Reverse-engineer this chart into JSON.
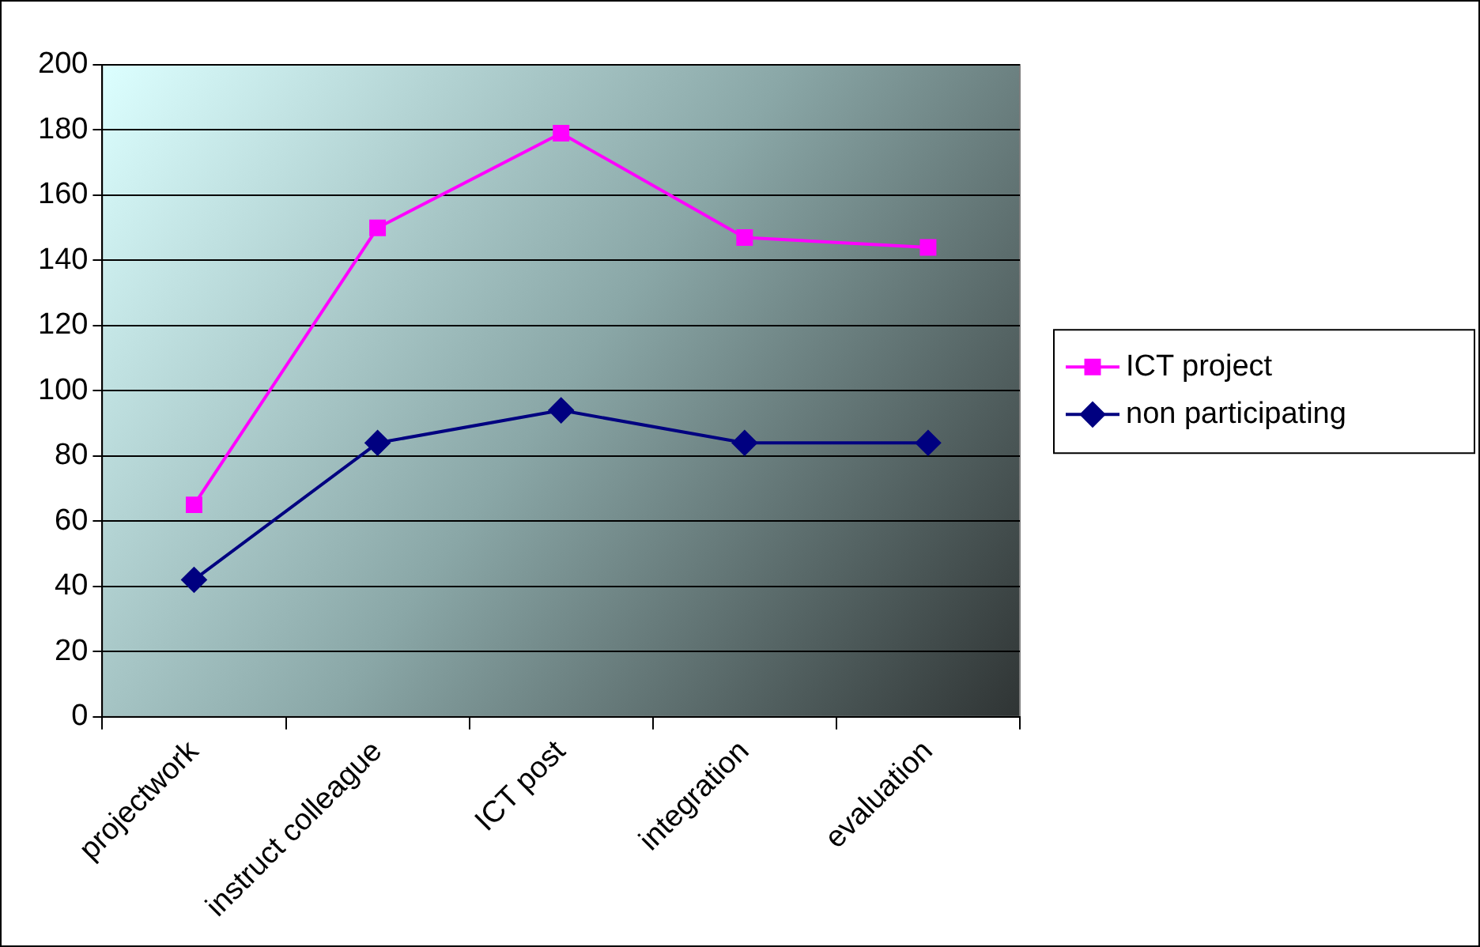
{
  "chart_data": {
    "type": "line",
    "categories": [
      "projectwork",
      "instruct colleague",
      "ICT post",
      "integration",
      "evaluation"
    ],
    "series": [
      {
        "name": "ICT project",
        "color": "#ff00ff",
        "marker": "square",
        "values": [
          65,
          150,
          179,
          147,
          144
        ]
      },
      {
        "name": "non participating",
        "color": "#000080",
        "marker": "diamond",
        "values": [
          42,
          84,
          94,
          84,
          84
        ]
      }
    ],
    "ylim": [
      0,
      200
    ],
    "yticks": [
      0,
      20,
      40,
      60,
      80,
      100,
      120,
      140,
      160,
      180,
      200
    ],
    "grid": "y",
    "legend": "right",
    "line_style": "solid"
  }
}
